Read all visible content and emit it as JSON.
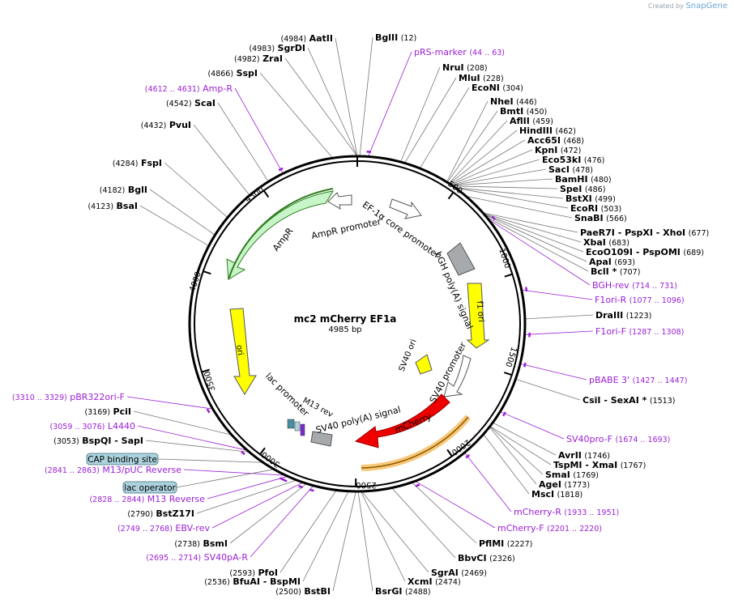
{
  "credit": {
    "prefix": "Created by",
    "brand": "SnapGene"
  },
  "plasmid": {
    "name": "mc2 mCherry EF1a",
    "length_label": "4985 bp",
    "length": 4985
  },
  "colors": {
    "primer": "#9b1fd6",
    "site": "#000000",
    "ampR_fill": "#c8f5c8",
    "ampR_outline": "#2f7d1f",
    "ori_fill": "#ffff00",
    "promoter_fill": "#ffffff",
    "polya_fill": "#a7aaad",
    "mcherry_fill": "#ee0000",
    "orange_band": "#f8c879",
    "misc_fill": "#acd3dd",
    "lac_op": "#4a8ea3",
    "m13_fill": "#7a2ccf"
  },
  "ticks": [
    "500",
    "1000",
    "1500",
    "2000",
    "2500",
    "3000",
    "3500",
    "4000",
    "4500"
  ],
  "features": [
    {
      "name": "AmpR",
      "type": "cds",
      "color": "ampR_fill"
    },
    {
      "name": "AmpR promoter",
      "type": "promoter"
    },
    {
      "name": "EF-1α core promoter",
      "type": "promoter"
    },
    {
      "name": "bGH poly(A) signal",
      "type": "polya"
    },
    {
      "name": "f1 ori",
      "type": "ori"
    },
    {
      "name": "SV40 ori",
      "type": "ori"
    },
    {
      "name": "SV40 promoter",
      "type": "promoter"
    },
    {
      "name": "mCherry",
      "type": "cds"
    },
    {
      "name": "SV40 poly(A) signal",
      "type": "polya"
    },
    {
      "name": "M13 rev",
      "type": "primer_site"
    },
    {
      "name": "lac promoter",
      "type": "promoter"
    },
    {
      "name": "ori",
      "type": "ori"
    }
  ],
  "boxed_labels": [
    {
      "name": "CAP binding site"
    },
    {
      "name": "lac operator"
    }
  ],
  "primers": [
    {
      "name": "pRS-marker",
      "range": "(44 .. 63)"
    },
    {
      "name": "BGH-rev",
      "range": "(714 .. 731)"
    },
    {
      "name": "F1ori-R",
      "range": "(1077 .. 1096)"
    },
    {
      "name": "F1ori-F",
      "range": "(1287 .. 1308)"
    },
    {
      "name": "pBABE 3'",
      "range": "(1427 .. 1447)"
    },
    {
      "name": "SV40pro-F",
      "range": "(1674 .. 1693)"
    },
    {
      "name": "mCherry-R",
      "range": "(1933 .. 1951)"
    },
    {
      "name": "mCherry-F",
      "range": "(2201 .. 2220)"
    },
    {
      "name": "SV40pA-R",
      "range": "(2695 .. 2714)"
    },
    {
      "name": "EBV-rev",
      "range": "(2749 .. 2768)"
    },
    {
      "name": "M13 Reverse",
      "range": "(2828 .. 2844)"
    },
    {
      "name": "M13/pUC Reverse",
      "range": "(2841 .. 2863)"
    },
    {
      "name": "L4440",
      "range": "(3059 .. 3076)"
    },
    {
      "name": "pBR322ori-F",
      "range": "(3310 .. 3329)"
    },
    {
      "name": "Amp-R",
      "range": "(4612 .. 4631)"
    }
  ],
  "sites": [
    {
      "name": "BglII",
      "pos": "(12)"
    },
    {
      "name": "NruI",
      "pos": "(208)"
    },
    {
      "name": "MluI",
      "pos": "(228)"
    },
    {
      "name": "EcoNI",
      "pos": "(304)"
    },
    {
      "name": "NheI",
      "pos": "(446)"
    },
    {
      "name": "BmtI",
      "pos": "(450)"
    },
    {
      "name": "AflII",
      "pos": "(459)"
    },
    {
      "name": "HindIII",
      "pos": "(462)"
    },
    {
      "name": "Acc65I",
      "pos": "(468)"
    },
    {
      "name": "KpnI",
      "pos": "(472)"
    },
    {
      "name": "Eco53kI",
      "pos": "(476)"
    },
    {
      "name": "SacI",
      "pos": "(478)"
    },
    {
      "name": "BamHI",
      "pos": "(480)"
    },
    {
      "name": "SpeI",
      "pos": "(486)"
    },
    {
      "name": "BstXI",
      "pos": "(499)"
    },
    {
      "name": "EcoRI",
      "pos": "(503)"
    },
    {
      "name": "SnaBI",
      "pos": "(566)"
    },
    {
      "name": "PaeR7I - PspXI - XhoI",
      "pos": "(677)"
    },
    {
      "name": "XbaI",
      "pos": "(683)"
    },
    {
      "name": "EcoO109I - PspOMI",
      "pos": "(689)"
    },
    {
      "name": "ApaI",
      "pos": "(693)"
    },
    {
      "name": "BclI *",
      "pos": "(707)"
    },
    {
      "name": "DraIII",
      "pos": "(1223)"
    },
    {
      "name": "CsiI - SexAI *",
      "pos": "(1513)"
    },
    {
      "name": "AvrII",
      "pos": "(1746)"
    },
    {
      "name": "TspMI - XmaI",
      "pos": "(1767)"
    },
    {
      "name": "SmaI",
      "pos": "(1769)"
    },
    {
      "name": "AgeI",
      "pos": "(1773)"
    },
    {
      "name": "MscI",
      "pos": "(1818)"
    },
    {
      "name": "PflMI",
      "pos": "(2227)"
    },
    {
      "name": "BbvCI",
      "pos": "(2326)"
    },
    {
      "name": "SgrAI",
      "pos": "(2469)"
    },
    {
      "name": "XcmI",
      "pos": "(2474)"
    },
    {
      "name": "BsrGI",
      "pos": "(2488)"
    },
    {
      "name": "BstBI",
      "pos": "(2500)"
    },
    {
      "name": "BfuAI - BspMI",
      "pos": "(2536)"
    },
    {
      "name": "PfoI",
      "pos": "(2593)"
    },
    {
      "name": "BsmI",
      "pos": "(2738)"
    },
    {
      "name": "BstZ17I",
      "pos": "(2790)"
    },
    {
      "name": "BspQI - SapI",
      "pos": "(3053)"
    },
    {
      "name": "PciI",
      "pos": "(3169)"
    },
    {
      "name": "BsaI",
      "pos": "(4123)"
    },
    {
      "name": "BglI",
      "pos": "(4182)"
    },
    {
      "name": "FspI",
      "pos": "(4284)"
    },
    {
      "name": "PvuI",
      "pos": "(4432)"
    },
    {
      "name": "ScaI",
      "pos": "(4542)"
    },
    {
      "name": "SspI",
      "pos": "(4866)"
    },
    {
      "name": "ZraI",
      "pos": "(4982)"
    },
    {
      "name": "SgrDI",
      "pos": "(4983)"
    },
    {
      "name": "AatII",
      "pos": "(4984)"
    }
  ]
}
